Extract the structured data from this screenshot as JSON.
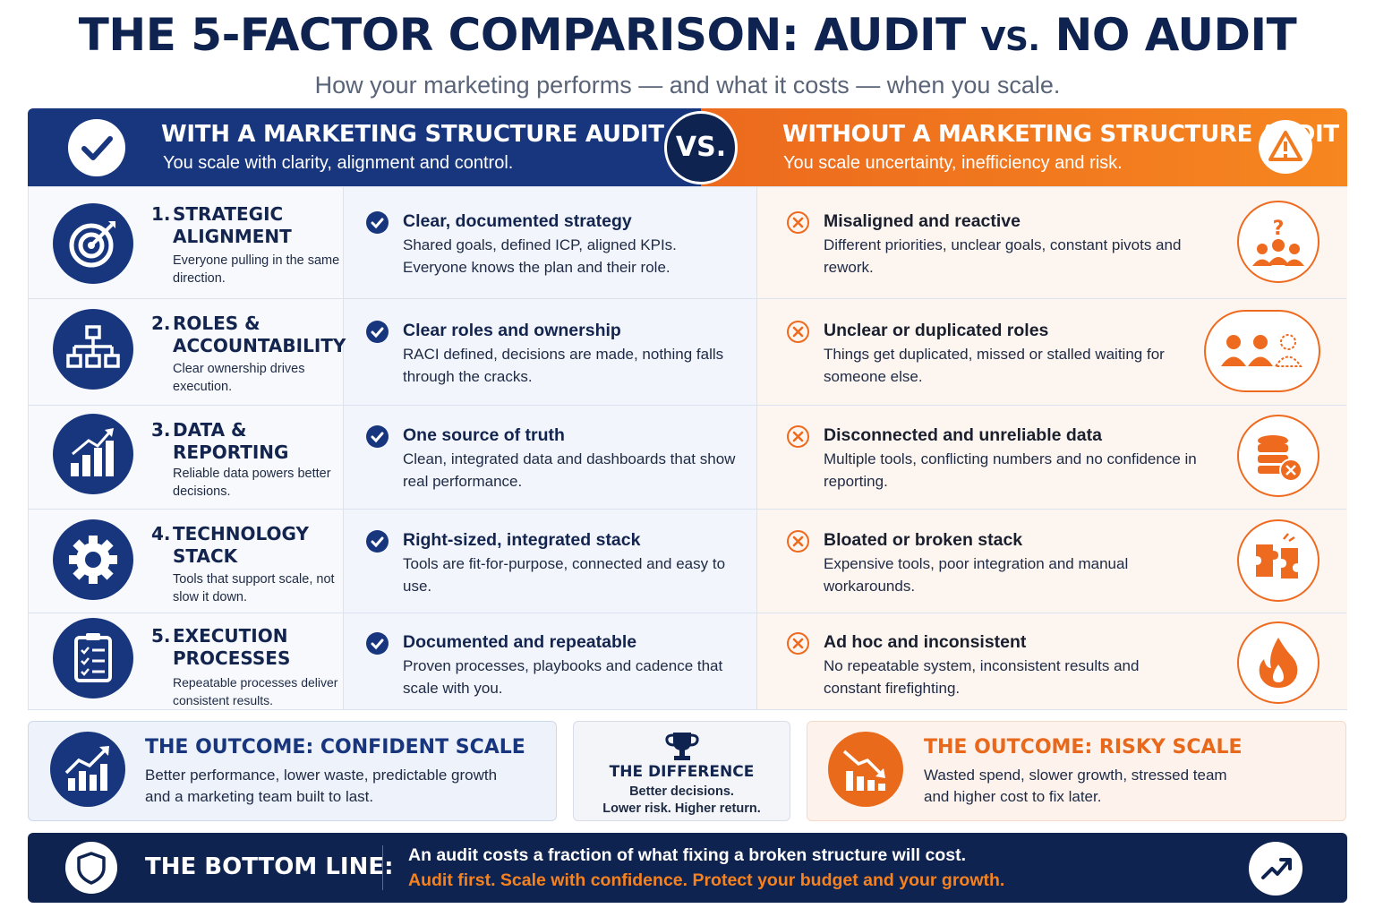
{
  "header": {
    "title_main": "THE 5-FACTOR COMPARISON: AUDIT ",
    "title_vs": "VS.",
    "title_end": " NO AUDIT",
    "subtitle": "How your marketing performs — and what it costs — when you scale."
  },
  "with_audit": {
    "title": "WITH A MARKETING STRUCTURE AUDIT",
    "subtitle": "You scale with clarity, alignment and control.",
    "icon": "check-icon",
    "color": "#17367e"
  },
  "vs_label": "VS.",
  "without_audit": {
    "title": "WITHOUT A MARKETING STRUCTURE AUDIT",
    "subtitle": "You scale uncertainty, inefficiency and risk.",
    "icon": "warning-icon",
    "color": "#f07a20"
  },
  "factors": [
    {
      "num": "1.",
      "title": "STRATEGIC ALIGNMENT",
      "desc": "Everyone pulling in the same direction.",
      "icon": "target-icon",
      "pos_title": "Clear, documented strategy",
      "pos_desc": "Shared goals, defined ICP, aligned KPIs. Everyone knows the plan and their role.",
      "neg_title": "Misaligned and reactive",
      "neg_desc": "Different priorities, unclear goals, constant pivots and rework.",
      "neg_icon": "confused-team-icon"
    },
    {
      "num": "2.",
      "title": "ROLES & ACCOUNTABILITY",
      "desc": "Clear ownership drives execution.",
      "icon": "org-chart-icon",
      "pos_title": "Clear roles and ownership",
      "pos_desc": "RACI defined, decisions are made, nothing falls through the cracks.",
      "neg_title": "Unclear or duplicated roles",
      "neg_desc": "Things get duplicated, missed or stalled waiting for someone else.",
      "neg_icon": "duplicated-people-icon"
    },
    {
      "num": "3.",
      "title": "DATA & REPORTING",
      "desc": "Reliable data powers better decisions.",
      "icon": "bar-chart-icon",
      "pos_title": "One source of truth",
      "pos_desc": "Clean, integrated data and dashboards that show real performance.",
      "neg_title": "Disconnected and unreliable data",
      "neg_desc": "Multiple tools, conflicting numbers and no confidence in reporting.",
      "neg_icon": "database-error-icon"
    },
    {
      "num": "4.",
      "title": "TECHNOLOGY STACK",
      "desc": "Tools that support scale, not slow it down.",
      "icon": "gear-icon",
      "pos_title": "Right-sized, integrated stack",
      "pos_desc": "Tools are fit-for-purpose, connected and easy to use.",
      "neg_title": "Bloated or broken stack",
      "neg_desc": "Expensive tools, poor integration and manual workarounds.",
      "neg_icon": "broken-puzzle-icon"
    },
    {
      "num": "5.",
      "title": "EXECUTION PROCESSES",
      "desc": "Repeatable processes deliver consistent results.",
      "icon": "clipboard-checklist-icon",
      "pos_title": "Documented and repeatable",
      "pos_desc": "Proven processes, playbooks and cadence that scale with you.",
      "neg_title": "Ad hoc and inconsistent",
      "neg_desc": "No repeatable system, inconsistent results and constant firefighting.",
      "neg_icon": "fire-icon"
    }
  ],
  "outcomes": {
    "left_title": "THE OUTCOME: CONFIDENT SCALE",
    "left_line1": "Better performance, lower waste, predictable growth",
    "left_line2": "and a marketing team built to last.",
    "mid_title": "THE DIFFERENCE",
    "mid_line1": "Better decisions.",
    "mid_line2": "Lower risk. Higher return.",
    "right_title": "THE OUTCOME: RISKY SCALE",
    "right_line1": "Wasted spend, slower growth, stressed team",
    "right_line2": "and higher cost to fix later.",
    "accent_orange": "#e8691c"
  },
  "bottom_line": {
    "title": "THE BOTTOM LINE:",
    "line1": "An audit costs a fraction of what fixing a broken structure will cost.",
    "line2": "Audit first. Scale with confidence. Protect your budget and your growth.",
    "highlight_color": "#f5821f"
  }
}
